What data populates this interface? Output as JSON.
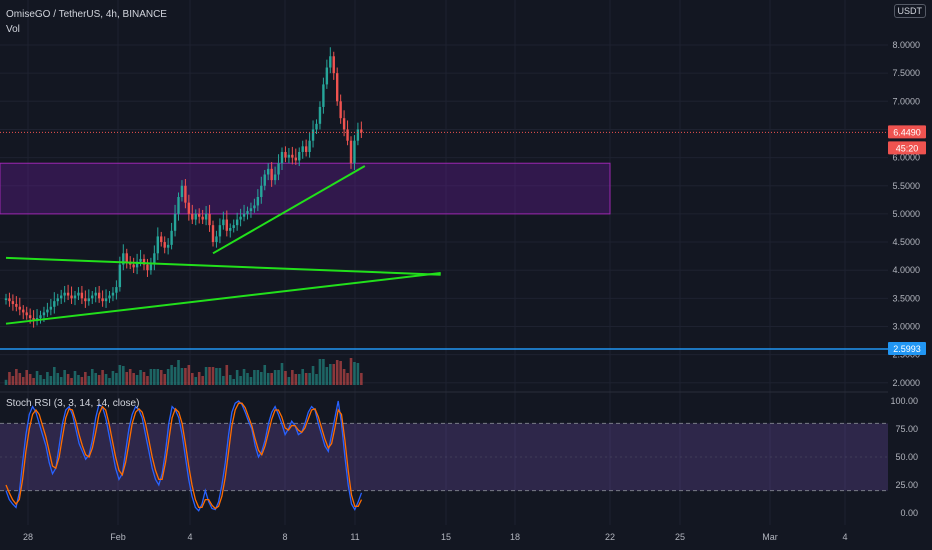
{
  "header": {
    "symbol_line": "OmiseGO / TetherUS, 4h, BINANCE",
    "vol_label": "Vol",
    "currency_badge": "USDT"
  },
  "indicator": {
    "label": "Stoch RSI (3, 3, 14, 14, close)"
  },
  "colors": {
    "background": "#131722",
    "bull": "#26a69a",
    "bear": "#ef5350",
    "trendline": "#22e01b",
    "zone_fill": "#6a1b9a",
    "blue_level": "#2196f3",
    "stoch_k": "#2962ff",
    "stoch_d": "#ff6d00"
  },
  "chart_data": [
    {
      "type": "candlestick",
      "title": "OmiseGO / TetherUS, 4h, BINANCE",
      "x_ticks": [
        "28",
        "Feb",
        "4",
        "8",
        "11",
        "15",
        "18",
        "22",
        "25",
        "Mar",
        "4"
      ],
      "y_ticks": [
        "8.0000",
        "7.5000",
        "7.0000",
        "6.5000",
        "6.0000",
        "5.5000",
        "5.0000",
        "4.5000",
        "4.0000",
        "3.5000",
        "3.0000",
        "2.5000",
        "2.0000"
      ],
      "ylim": [
        2.0,
        8.0
      ],
      "price_badge": "6.4490",
      "countdown_badge": "45:20",
      "level_badge": "2.5993",
      "last_price": 6.449,
      "horizontal_level": 2.5993,
      "closes": [
        3.5,
        3.45,
        3.4,
        3.35,
        3.3,
        3.25,
        3.2,
        3.15,
        3.1,
        3.15,
        3.2,
        3.25,
        3.3,
        3.35,
        3.45,
        3.5,
        3.55,
        3.6,
        3.55,
        3.5,
        3.55,
        3.6,
        3.5,
        3.45,
        3.5,
        3.55,
        3.6,
        3.5,
        3.45,
        3.5,
        3.55,
        3.6,
        3.7,
        4.1,
        4.3,
        4.15,
        4.1,
        4.05,
        4.15,
        4.2,
        4.1,
        4.0,
        4.1,
        4.3,
        4.6,
        4.5,
        4.4,
        4.45,
        4.7,
        5.0,
        5.3,
        5.5,
        5.2,
        5.0,
        4.9,
        5.0,
        4.95,
        4.9,
        5.0,
        4.8,
        4.5,
        4.6,
        4.8,
        4.9,
        4.7,
        4.75,
        4.8,
        4.9,
        4.95,
        5.0,
        5.05,
        5.1,
        5.15,
        5.3,
        5.5,
        5.7,
        5.8,
        5.6,
        5.7,
        5.9,
        6.1,
        6.0,
        6.05,
        6.0,
        5.95,
        6.1,
        6.2,
        6.1,
        6.3,
        6.5,
        6.6,
        6.9,
        7.3,
        7.6,
        7.8,
        7.5,
        7.0,
        6.7,
        6.5,
        6.3,
        5.9,
        6.3,
        6.5,
        6.449
      ],
      "zones": [
        {
          "top": 5.9,
          "bottom": 5.0,
          "x_start": "28",
          "x_end": "22"
        }
      ],
      "trendlines": [
        {
          "from": [
            0,
            4.22
          ],
          "to": [
            126,
            3.92
          ]
        },
        {
          "from": [
            0,
            3.05
          ],
          "to": [
            126,
            3.95
          ]
        },
        {
          "from": [
            60,
            4.3
          ],
          "to": [
            104,
            5.85
          ]
        }
      ]
    },
    {
      "type": "line",
      "title": "Stoch RSI (3, 3, 14, 14, close)",
      "y_ticks": [
        "100.00",
        "75.00",
        "50.00",
        "25.00",
        "0.00"
      ],
      "ylim": [
        0,
        100
      ],
      "band": [
        20,
        80
      ],
      "series": [
        {
          "values": [
            20,
            12,
            8,
            5,
            18,
            45,
            70,
            88,
            95,
            90,
            80,
            70,
            60,
            45,
            35,
            40,
            60,
            80,
            92,
            95,
            88,
            75,
            62,
            55,
            48,
            52,
            65,
            85,
            97,
            95,
            85,
            70,
            55,
            40,
            30,
            35,
            55,
            75,
            88,
            95,
            92,
            85,
            70,
            55,
            40,
            30,
            25,
            35,
            55,
            80,
            95,
            92,
            85,
            70,
            50,
            30,
            15,
            5,
            2,
            8,
            20,
            10,
            4,
            3,
            10,
            25,
            45,
            70,
            90,
            98,
            100,
            97,
            90,
            82,
            75,
            60,
            50,
            55,
            65,
            80,
            90,
            95,
            88,
            80,
            70,
            75,
            82,
            78,
            70,
            72,
            80,
            90,
            95,
            92,
            80,
            70,
            60,
            55,
            70,
            85,
            100,
            80,
            50,
            25,
            8,
            3,
            10,
            18
          ]
        },
        {
          "values": [
            25,
            18,
            12,
            8,
            12,
            30,
            55,
            75,
            88,
            92,
            88,
            78,
            68,
            55,
            42,
            40,
            50,
            68,
            85,
            93,
            92,
            82,
            70,
            60,
            52,
            50,
            58,
            72,
            88,
            95,
            92,
            80,
            65,
            50,
            38,
            34,
            45,
            62,
            80,
            90,
            93,
            90,
            80,
            65,
            50,
            38,
            30,
            30,
            45,
            65,
            85,
            93,
            90,
            80,
            62,
            42,
            25,
            12,
            5,
            5,
            12,
            12,
            7,
            4,
            6,
            15,
            32,
            55,
            78,
            92,
            98,
            98,
            94,
            86,
            78,
            66,
            56,
            52,
            60,
            72,
            84,
            92,
            92,
            86,
            76,
            74,
            78,
            78,
            74,
            72,
            76,
            84,
            92,
            93,
            86,
            76,
            66,
            58,
            62,
            76,
            92,
            88,
            65,
            38,
            16,
            6,
            6,
            12
          ]
        }
      ]
    }
  ]
}
